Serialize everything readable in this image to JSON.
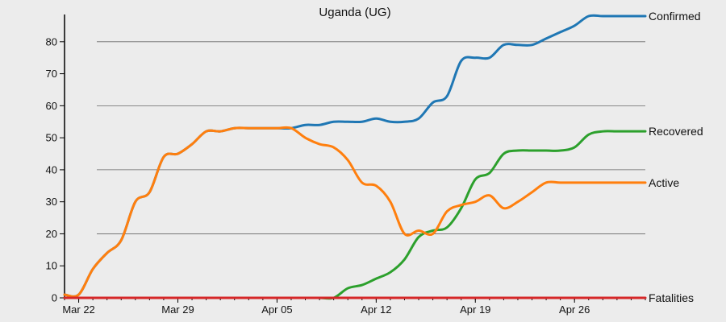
{
  "chart_data": {
    "type": "line",
    "title": "Uganda (UG)",
    "xlabel": "",
    "ylabel": "",
    "x_start": "2020-03-21",
    "x_end": "2020-05-01",
    "x_ticks": [
      {
        "date": "2020-03-22",
        "label": "Mar 22"
      },
      {
        "date": "2020-03-29",
        "label": "Mar 29"
      },
      {
        "date": "2020-04-05",
        "label": "Apr 05"
      },
      {
        "date": "2020-04-12",
        "label": "Apr 12"
      },
      {
        "date": "2020-04-19",
        "label": "Apr 19"
      },
      {
        "date": "2020-04-26",
        "label": "Apr 26"
      }
    ],
    "ylim": [
      0,
      88
    ],
    "y_ticks": [
      0,
      10,
      20,
      30,
      40,
      50,
      60,
      70,
      80
    ],
    "gridlines": [
      20,
      40,
      60,
      80
    ],
    "x": [
      "2020-03-21",
      "2020-03-22",
      "2020-03-23",
      "2020-03-24",
      "2020-03-25",
      "2020-03-26",
      "2020-03-27",
      "2020-03-28",
      "2020-03-29",
      "2020-03-30",
      "2020-03-31",
      "2020-04-01",
      "2020-04-02",
      "2020-04-03",
      "2020-04-04",
      "2020-04-05",
      "2020-04-06",
      "2020-04-07",
      "2020-04-08",
      "2020-04-09",
      "2020-04-10",
      "2020-04-11",
      "2020-04-12",
      "2020-04-13",
      "2020-04-14",
      "2020-04-15",
      "2020-04-16",
      "2020-04-17",
      "2020-04-18",
      "2020-04-19",
      "2020-04-20",
      "2020-04-21",
      "2020-04-22",
      "2020-04-23",
      "2020-04-24",
      "2020-04-25",
      "2020-04-26",
      "2020-04-27",
      "2020-04-28",
      "2020-04-29",
      "2020-04-30",
      "2020-05-01"
    ],
    "series": [
      {
        "name": "Confirmed",
        "color": "#1f77b4",
        "values": [
          1,
          1,
          9,
          14,
          18,
          30,
          33,
          44,
          45,
          48,
          52,
          52,
          53,
          53,
          53,
          53,
          53,
          54,
          54,
          55,
          55,
          55,
          56,
          55,
          55,
          56,
          61,
          63,
          74,
          75,
          75,
          79,
          79,
          79,
          81,
          83,
          85,
          88,
          88,
          88,
          88,
          88
        ]
      },
      {
        "name": "Recovered",
        "color": "#2ca02c",
        "values": [
          0,
          0,
          0,
          0,
          0,
          0,
          0,
          0,
          0,
          0,
          0,
          0,
          0,
          0,
          0,
          0,
          0,
          0,
          0,
          0,
          3,
          4,
          6,
          8,
          12,
          19,
          21,
          22,
          28,
          37,
          39,
          45,
          46,
          46,
          46,
          46,
          47,
          51,
          52,
          52,
          52,
          52
        ]
      },
      {
        "name": "Active",
        "color": "#ff7f0e",
        "values": [
          1,
          1,
          9,
          14,
          18,
          30,
          33,
          44,
          45,
          48,
          52,
          52,
          53,
          53,
          53,
          53,
          53,
          50,
          48,
          47,
          43,
          36,
          35,
          30,
          20,
          21,
          20,
          27,
          29,
          30,
          32,
          28,
          30,
          33,
          36,
          36,
          36,
          36,
          36,
          36,
          36,
          36
        ]
      },
      {
        "name": "Fatalities",
        "color": "#d62728",
        "values": [
          0,
          0,
          0,
          0,
          0,
          0,
          0,
          0,
          0,
          0,
          0,
          0,
          0,
          0,
          0,
          0,
          0,
          0,
          0,
          0,
          0,
          0,
          0,
          0,
          0,
          0,
          0,
          0,
          0,
          0,
          0,
          0,
          0,
          0,
          0,
          0,
          0,
          0,
          0,
          0,
          0,
          0
        ]
      }
    ],
    "grid": true,
    "legend": "end-of-line labels"
  }
}
